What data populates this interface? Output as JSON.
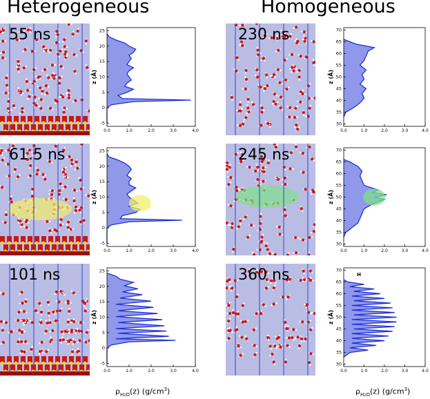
{
  "titles": {
    "left": "Heterogeneous",
    "right": "Homogeneous"
  },
  "snapshots": {
    "het": [
      "55 ns",
      "61.5 ns",
      "101 ns"
    ],
    "hom": [
      "230 ns",
      "245 ns",
      "360 ns"
    ]
  },
  "axis": {
    "ylabel": "z (Å)",
    "xlabel_rho": "ρ",
    "xlabel_sub": "H",
    "xlabel_sub2": "2",
    "xlabel_sub3": "O",
    "xlabel_rest": "(z) (g/cm",
    "xlabel_sup": "3",
    "xlabel_close": ")",
    "annotation_H": "H"
  },
  "colors": {
    "panel_bg": "#b9bde3",
    "line": "#1f2fd8",
    "fill": "#7d86e6",
    "yellow": "#f2ee6b",
    "green": "#7fe08a"
  },
  "chart_data": [
    {
      "type": "area",
      "name": "het-55",
      "ylabel": "z (Å)",
      "xlabel": "ρH2O(z) (g/cm3)",
      "xlim": [
        0,
        4
      ],
      "ylim": [
        -6,
        26
      ],
      "xticks": [
        "0.0",
        "1.0",
        "2.0",
        "3.0",
        "4.0"
      ],
      "yticks": [
        "-5",
        "0",
        "5",
        "10",
        "15",
        "20",
        "25"
      ],
      "z": [
        -5,
        0,
        1,
        2,
        2.5,
        3,
        4,
        5,
        6,
        7,
        8,
        9,
        10,
        11,
        12,
        13,
        14,
        15,
        16,
        17,
        18,
        19,
        20,
        21,
        22,
        23,
        24
      ],
      "rho": [
        0,
        0,
        0.2,
        1.2,
        3.8,
        0.7,
        0.5,
        0.9,
        1.2,
        0.8,
        0.9,
        1.1,
        1.0,
        0.9,
        1.0,
        1.2,
        0.9,
        1.0,
        1.1,
        1.0,
        1.2,
        1.3,
        1.0,
        0.8,
        0.4,
        0.1,
        0
      ]
    },
    {
      "type": "area",
      "name": "het-61.5",
      "ylabel": "z (Å)",
      "xlabel": "ρH2O(z) (g/cm3)",
      "xlim": [
        0,
        4
      ],
      "ylim": [
        -6,
        26
      ],
      "xticks": [
        "0.0",
        "1.0",
        "2.0",
        "3.0",
        "4.0"
      ],
      "yticks": [
        "-5",
        "0",
        "5",
        "10",
        "15",
        "20",
        "25"
      ],
      "z": [
        -5,
        0,
        1,
        2,
        2.5,
        3,
        4,
        5,
        6,
        7,
        8,
        9,
        10,
        11,
        12,
        13,
        14,
        15,
        16,
        17,
        18,
        19,
        20,
        21,
        22,
        23,
        24
      ],
      "rho": [
        0,
        0,
        0.2,
        1.0,
        3.4,
        0.6,
        0.7,
        1.3,
        1.5,
        1.0,
        1.4,
        1.2,
        1.0,
        0.9,
        1.1,
        1.3,
        1.0,
        1.0,
        1.1,
        0.9,
        1.0,
        1.1,
        1.0,
        0.8,
        0.5,
        0.1,
        0
      ],
      "highlight": {
        "color": "yellow",
        "z": 8,
        "rho": 1.5
      }
    },
    {
      "type": "area",
      "name": "het-101",
      "ylabel": "z (Å)",
      "xlabel": "ρH2O(z) (g/cm3)",
      "xlim": [
        0,
        4
      ],
      "ylim": [
        -6,
        26
      ],
      "xticks": [
        "0.0",
        "1.0",
        "2.0",
        "3.0",
        "4.0"
      ],
      "yticks": [
        "-5",
        "0",
        "5",
        "10",
        "15",
        "20",
        "25"
      ],
      "z": [
        -5,
        0,
        1,
        2,
        2.5,
        3,
        3.8,
        4.8,
        5.5,
        6.3,
        7.2,
        8.3,
        9.2,
        10.2,
        11.2,
        12.1,
        13.2,
        14.2,
        15.2,
        16.2,
        17.3,
        18.2,
        19.2,
        20.2,
        21.3,
        22.3,
        23.3,
        24.3
      ],
      "rho": [
        0,
        0,
        0.2,
        1.0,
        3.1,
        0.4,
        2.8,
        0.5,
        2.7,
        0.4,
        2.6,
        0.5,
        2.5,
        0.4,
        2.3,
        0.5,
        2.1,
        0.4,
        2.0,
        0.6,
        1.6,
        0.7,
        1.4,
        0.8,
        1.2,
        0.6,
        0.4,
        0
      ]
    },
    {
      "type": "area",
      "name": "hom-230",
      "ylabel": "z (Å)",
      "xlabel": "ρH2O(z) (g/cm3)",
      "xlim": [
        0,
        4
      ],
      "ylim": [
        29,
        71
      ],
      "xticks": [
        "0.0",
        "1.0",
        "2.0",
        "3.0",
        "4.0"
      ],
      "yticks": [
        "30",
        "35",
        "40",
        "45",
        "50",
        "55",
        "60",
        "65",
        "70"
      ],
      "z": [
        33,
        35,
        37,
        39,
        41,
        43,
        45,
        47,
        49,
        51,
        53,
        55,
        57,
        59,
        61,
        62.5,
        64,
        66
      ],
      "rho": [
        0,
        0.1,
        0.5,
        0.8,
        1.0,
        0.9,
        1.1,
        0.8,
        1.0,
        0.9,
        1.1,
        0.8,
        1.0,
        1.1,
        1.2,
        1.5,
        0.6,
        0
      ]
    },
    {
      "type": "area",
      "name": "hom-245",
      "ylabel": "z (Å)",
      "xlabel": "ρH2O(z) (g/cm3)",
      "xlim": [
        0,
        4
      ],
      "ylim": [
        29,
        71
      ],
      "xticks": [
        "0.0",
        "1.0",
        "2.0",
        "3.0",
        "4.0"
      ],
      "yticks": [
        "30",
        "35",
        "40",
        "45",
        "50",
        "55",
        "60",
        "65",
        "70"
      ],
      "z": [
        33,
        35,
        37,
        39,
        41,
        43,
        45,
        47,
        49,
        50,
        51,
        52,
        53,
        55,
        57,
        59,
        61,
        63,
        65,
        66
      ],
      "rho": [
        0,
        0.1,
        0.4,
        0.7,
        0.8,
        0.9,
        1.0,
        1.4,
        2.0,
        1.5,
        2.1,
        1.4,
        1.7,
        1.0,
        0.9,
        0.8,
        0.9,
        0.7,
        0.3,
        0
      ],
      "highlight": {
        "color": "green",
        "z": 50,
        "rho": 1.5
      }
    },
    {
      "type": "area",
      "name": "hom-360",
      "ylabel": "z (Å)",
      "xlabel": "ρH2O(z) (g/cm3)",
      "xlim": [
        0,
        4
      ],
      "ylim": [
        29,
        71
      ],
      "xticks": [
        "0.0",
        "1.0",
        "2.0",
        "3.0",
        "4.0"
      ],
      "yticks": [
        "30",
        "35",
        "40",
        "45",
        "50",
        "55",
        "60",
        "65",
        "70"
      ],
      "z": [
        33,
        35,
        36,
        37,
        38,
        39,
        40,
        41,
        42,
        43,
        44,
        45,
        46,
        47,
        48,
        49,
        50,
        51,
        52,
        53,
        54,
        55,
        56,
        57,
        58,
        59,
        60,
        61,
        62,
        63,
        64,
        65,
        66
      ],
      "rho": [
        0,
        0.3,
        1.2,
        0.3,
        1.6,
        0.4,
        2.0,
        0.4,
        2.2,
        0.4,
        2.4,
        0.5,
        2.5,
        0.4,
        2.6,
        0.4,
        2.6,
        0.5,
        2.5,
        0.4,
        2.4,
        0.4,
        2.3,
        0.5,
        2.0,
        0.4,
        1.8,
        0.5,
        1.5,
        0.3,
        1.0,
        0.2,
        0
      ],
      "annotation": "H"
    }
  ]
}
